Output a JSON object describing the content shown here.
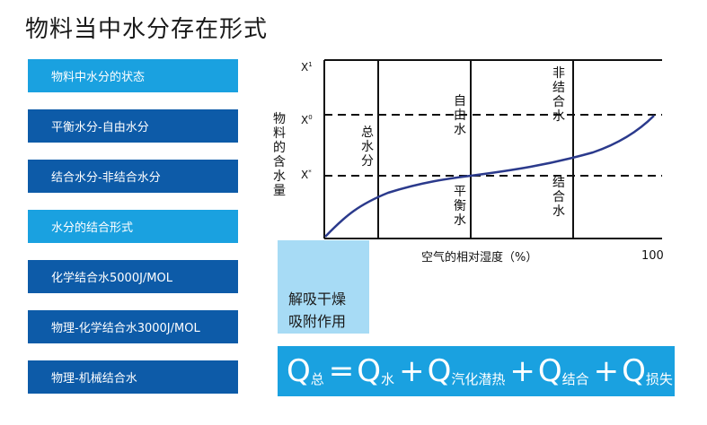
{
  "title": "物料当中水分存在形式",
  "buttons": [
    {
      "label": "物料中水分的状态",
      "style": "light"
    },
    {
      "label": "平衡水分-自由水分",
      "style": "dark"
    },
    {
      "label": "结合水分-非结合水分",
      "style": "dark"
    },
    {
      "label": "水分的结合形式",
      "style": "light"
    },
    {
      "label": "化学结合水5000J/MOL",
      "style": "dark"
    },
    {
      "label": "物理-化学结合水3000J/MOL",
      "style": "dark"
    },
    {
      "label": "物理-机械结合水",
      "style": "dark"
    }
  ],
  "diagram": {
    "y_axis_label": "物料的含水量",
    "x_axis_label": "空气的相对湿度（%）",
    "x_max_label": "100",
    "y_ticks": {
      "x1": "X",
      "x1_sup": "1",
      "x0": "X",
      "x0_sup": "0",
      "xs": "X",
      "xs_sup": "*"
    },
    "region_labels": {
      "total_water": "总水分",
      "free_water": "自由水",
      "equilibrium_water": "平衡水",
      "unbound_water": "非结合水",
      "bound_water": "结合水"
    }
  },
  "note": {
    "line1": "解吸干燥",
    "line2": "吸附作用"
  },
  "formula": {
    "Q": "Q",
    "equals": "=",
    "plus": "+",
    "sub_total": "总",
    "sub_water": "水",
    "sub_vapor": "汽化潜热",
    "sub_bind": "结合",
    "sub_loss": "损失"
  },
  "colors": {
    "light_blue": "#1aa1e0",
    "dark_blue": "#0d5ba8",
    "pale_blue": "#a7dbf5",
    "curve": "#2b3a8c"
  }
}
